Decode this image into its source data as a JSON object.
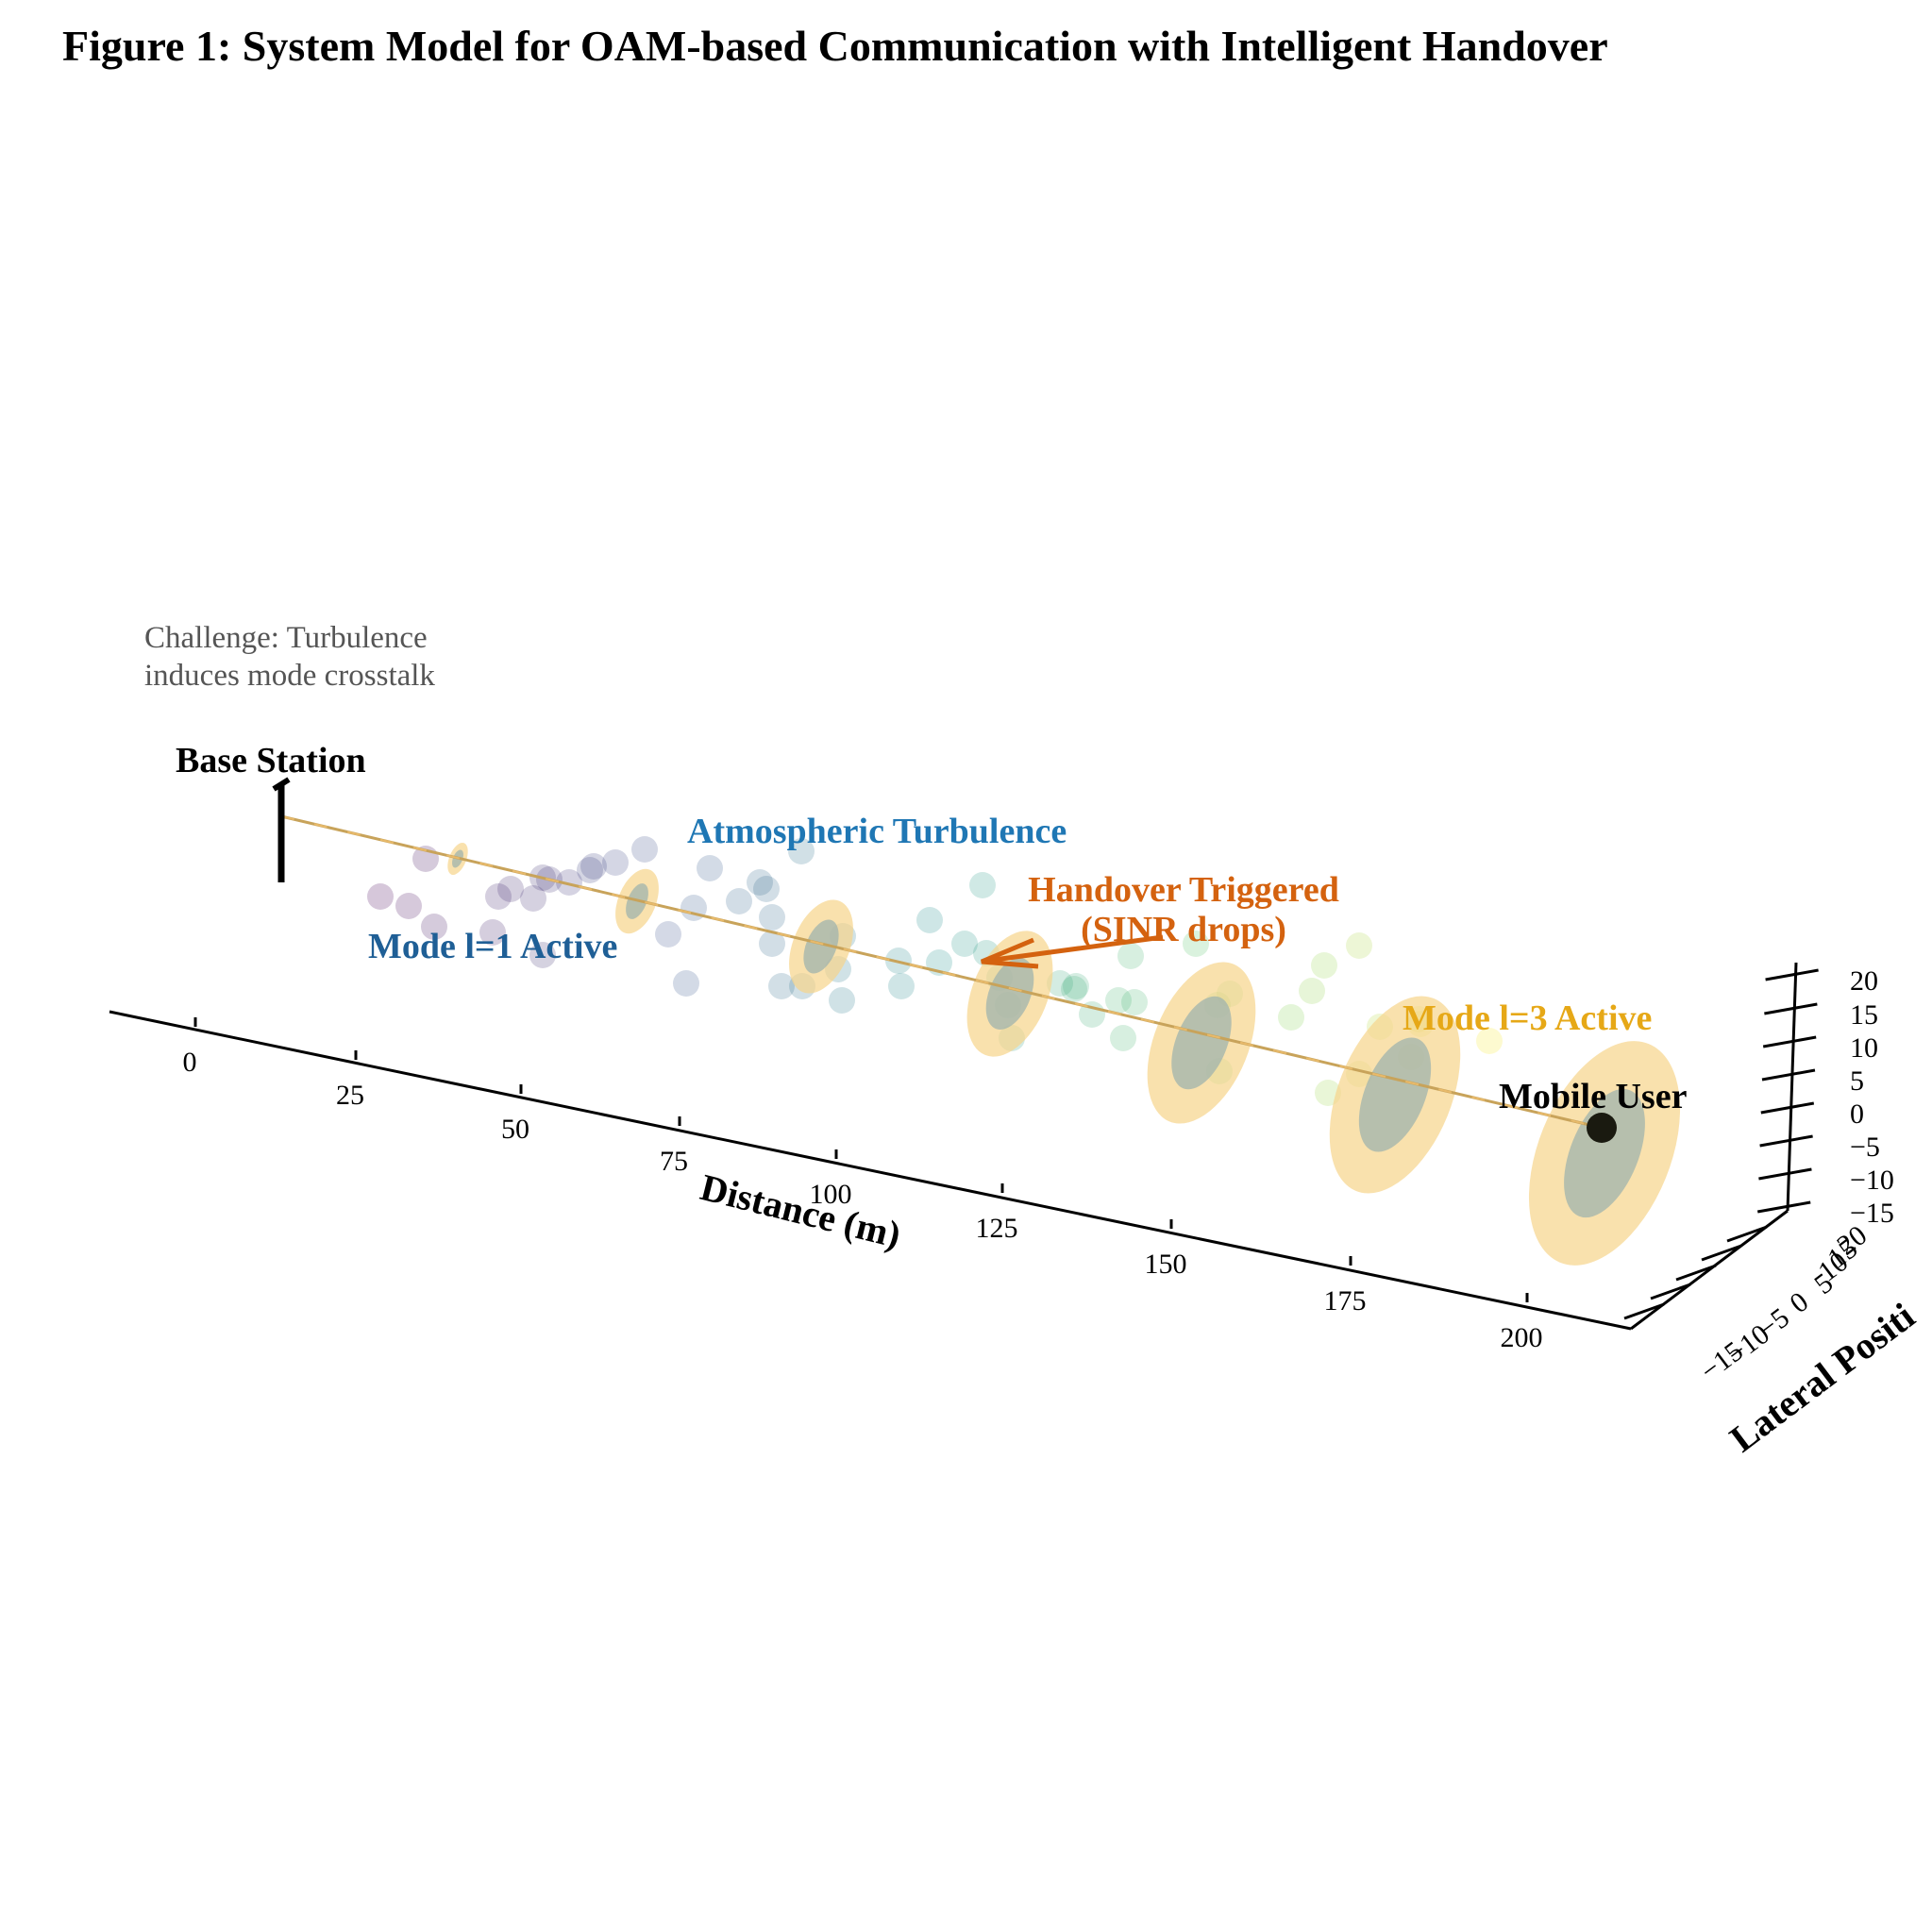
{
  "title": "Figure 1: System Model for OAM-based Communication with Intelligent Handover",
  "challenge_note": [
    "Challenge: Turbulence",
    "induces mode crosstalk"
  ],
  "labels": {
    "base_station": "Base Station",
    "mobile_user": "Mobile User",
    "turbulence": "Atmospheric Turbulence",
    "handover": [
      "Handover Triggered",
      "(SINR drops)"
    ],
    "mode1": "Mode l=1 Active",
    "mode3": "Mode l=3 Active"
  },
  "axes": {
    "x_label": "Distance (m)",
    "y_label": "Lateral Positi",
    "x_ticks": [
      "0",
      "25",
      "50",
      "75",
      "100",
      "125",
      "150",
      "175",
      "200"
    ],
    "y_ticks": [
      "−15",
      "−10",
      "−5",
      "0",
      "5",
      "10",
      "15",
      "20"
    ],
    "z_ticks": [
      "20",
      "15",
      "10",
      "5",
      "0",
      "−5",
      "−10",
      "−15"
    ]
  },
  "colors": {
    "beam_outer": "#f7d48a",
    "beam_inner": "#9fb3ad",
    "beam_line": "#c8a35a",
    "turbulence_text": "#1f77b4",
    "mode1_text": "#1f5f96",
    "handover_text": "#d4620f",
    "mode3_text": "#e6a817",
    "note_text": "#555555",
    "user_dot": "#1a1a10"
  },
  "turbulence_colormap": [
    "#440154",
    "#3b528b",
    "#21908d",
    "#5dc963",
    "#fde725"
  ]
}
